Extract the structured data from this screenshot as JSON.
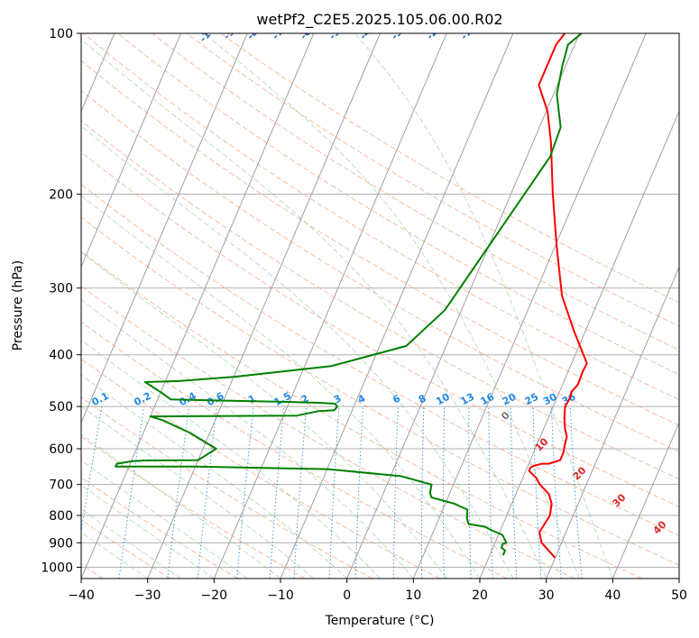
{
  "chart_data": {
    "type": "line",
    "subtype": "skew-t log-p diagram",
    "title": "wetPf2_C2E5.2025.105.06.00.R02",
    "xlabel": "Temperature (°C)",
    "ylabel": "Pressure (hPa)",
    "xlim": [
      -40,
      50
    ],
    "ylim": [
      1050,
      100
    ],
    "y_scale": "log",
    "grid": true,
    "x_ticks": [
      "−40",
      "−30",
      "−20",
      "−10",
      "0",
      "10",
      "20",
      "30",
      "40",
      "50"
    ],
    "y_ticks": [
      "100",
      "200",
      "300",
      "400",
      "500",
      "600",
      "700",
      "800",
      "900",
      "1000"
    ],
    "series": [
      {
        "color": "#ff0000",
        "x": [
          30,
          27,
          26,
          26.5,
          26,
          25,
          23,
          22,
          20.5,
          20.5,
          21,
          22,
          23,
          24.5,
          24.5,
          24.2,
          24,
          23.2,
          22.4,
          21.8,
          22,
          21.8,
          22.3,
          22.2,
          22.3,
          20.5,
          18.2,
          14.2,
          10.2,
          6.3,
          2.7,
          0.2,
          -2.8,
          -2.8,
          -2.8,
          -2.2
        ],
        "y": [
          960,
          900,
          860,
          800,
          760,
          730,
          700,
          680,
          660,
          650,
          645,
          640,
          640,
          630,
          610,
          590,
          570,
          550,
          525,
          500,
          480,
          470,
          455,
          430,
          415,
          390,
          360,
          310,
          250,
          200,
          160,
          140,
          125,
          115,
          105,
          100
        ]
      },
      {
        "color": "#008000",
        "x": [
          22,
          22,
          21.3,
          21.2,
          21.7,
          20.6,
          18.4,
          17.5,
          14.8,
          14.2,
          13.7,
          11.3,
          7.5,
          7.0,
          6.7,
          1.5,
          -10,
          -30,
          -42,
          -42,
          -39.8,
          -38.8,
          -38,
          -30,
          -28,
          -33,
          -38,
          -40,
          -18,
          -15,
          -12.7,
          -12.5,
          -13,
          -15.5,
          -21,
          -28,
          -38,
          -40,
          -43,
          -38,
          -30,
          -16,
          -6,
          -2.5,
          2.5,
          3.5,
          3.2,
          0.5,
          -0.5,
          -1,
          0.3
        ],
        "y": [
          950,
          930,
          920,
          905,
          900,
          870,
          850,
          840,
          830,
          810,
          780,
          760,
          740,
          725,
          700,
          675,
          655,
          648,
          648,
          640,
          633,
          632,
          631,
          630,
          600,
          560,
          530,
          522,
          520,
          510,
          508,
          500,
          494,
          492,
          490,
          488,
          485,
          470,
          450,
          448,
          440,
          420,
          385,
          330,
          190,
          170,
          150,
          130,
          115,
          105,
          100
        ]
      }
    ],
    "isotherms_step": 10,
    "dry_adiabats_theta": [
      -100,
      -90,
      -80,
      -70,
      -60,
      -50,
      -40,
      -30,
      -20,
      -10,
      0,
      10,
      20,
      30,
      40
    ],
    "mixing_ratio_lines": [
      "0.1",
      "0.2",
      "0.4",
      "0.6",
      "1",
      "1.5",
      "2",
      "3",
      "4",
      "6",
      "8",
      "10",
      "13",
      "16",
      "20",
      "25",
      "30",
      "36"
    ],
    "moist_adiabat_labels": [
      "0",
      "10",
      "20",
      "30",
      "40"
    ],
    "legend": "none"
  }
}
